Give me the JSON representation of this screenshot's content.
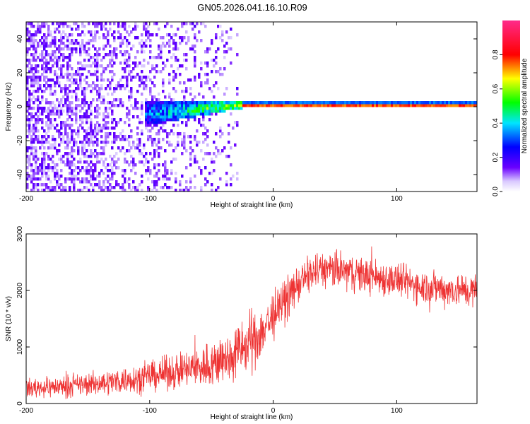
{
  "title": "GN05.2026.041.16.10.R09",
  "chart_data": [
    {
      "type": "heatmap",
      "name": "spectrogram",
      "xlabel": "Height of straight line (km)",
      "ylabel": "Frequency (Hz)",
      "xlim": [
        -200,
        165
      ],
      "ylim": [
        -50,
        50
      ],
      "xticks": [
        -200,
        -100,
        0,
        100
      ],
      "yticks": [
        -40,
        -20,
        0,
        20,
        40
      ],
      "tick_labels_x": [
        "-200",
        "-100",
        "0",
        "100"
      ],
      "tick_labels_y": [
        "-40",
        "-20",
        "0",
        "20",
        "40"
      ],
      "colorbar": {
        "label": "Normalized spectral amplitude",
        "range": [
          0.0,
          1.0
        ],
        "ticks": [
          0.0,
          0.2,
          0.4,
          0.6,
          0.8
        ],
        "tick_labels": [
          "0.0",
          "0.2",
          "0.4",
          "0.6",
          "0.8"
        ],
        "colormap": [
          "#ffffff",
          "#6a00ff",
          "#0000ff",
          "#00e5ff",
          "#00ff00",
          "#ffff00",
          "#ff0000",
          "#ff2a8a"
        ]
      },
      "features": {
        "noise_region_x": [
          -200,
          -30
        ],
        "signal_band_start_x": -105,
        "strong_line_start_x": -25,
        "band_center_freq": 0.5,
        "band_center_freq_at_start": -5
      }
    },
    {
      "type": "line",
      "name": "snr",
      "xlabel": "Height of straight line (km)",
      "ylabel": "SNR (10 * v/v)",
      "xlim": [
        -200,
        165
      ],
      "ylim": [
        0,
        3000
      ],
      "xticks": [
        -200,
        -100,
        0,
        100
      ],
      "yticks": [
        0,
        1000,
        2000,
        3000
      ],
      "tick_labels_x": [
        "-200",
        "-100",
        "0",
        "100"
      ],
      "tick_labels_y": [
        "0",
        "1000",
        "2000",
        "3000"
      ],
      "color": "#ee3333",
      "series": [
        {
          "name": "SNR",
          "x": [
            -200,
            -180,
            -160,
            -140,
            -120,
            -100,
            -80,
            -60,
            -40,
            -30,
            -20,
            -10,
            0,
            10,
            20,
            30,
            40,
            60,
            80,
            100,
            120,
            140,
            165
          ],
          "values": [
            270,
            290,
            320,
            360,
            420,
            480,
            560,
            640,
            760,
            900,
            1050,
            1250,
            1550,
            1850,
            2100,
            2300,
            2380,
            2330,
            2250,
            2180,
            2080,
            2020,
            1990
          ],
          "noise_amplitude": [
            150,
            150,
            160,
            180,
            200,
            220,
            260,
            320,
            380,
            420,
            450,
            420,
            380,
            320,
            280,
            280,
            280,
            280,
            270,
            260,
            260,
            260,
            260
          ]
        }
      ]
    }
  ]
}
